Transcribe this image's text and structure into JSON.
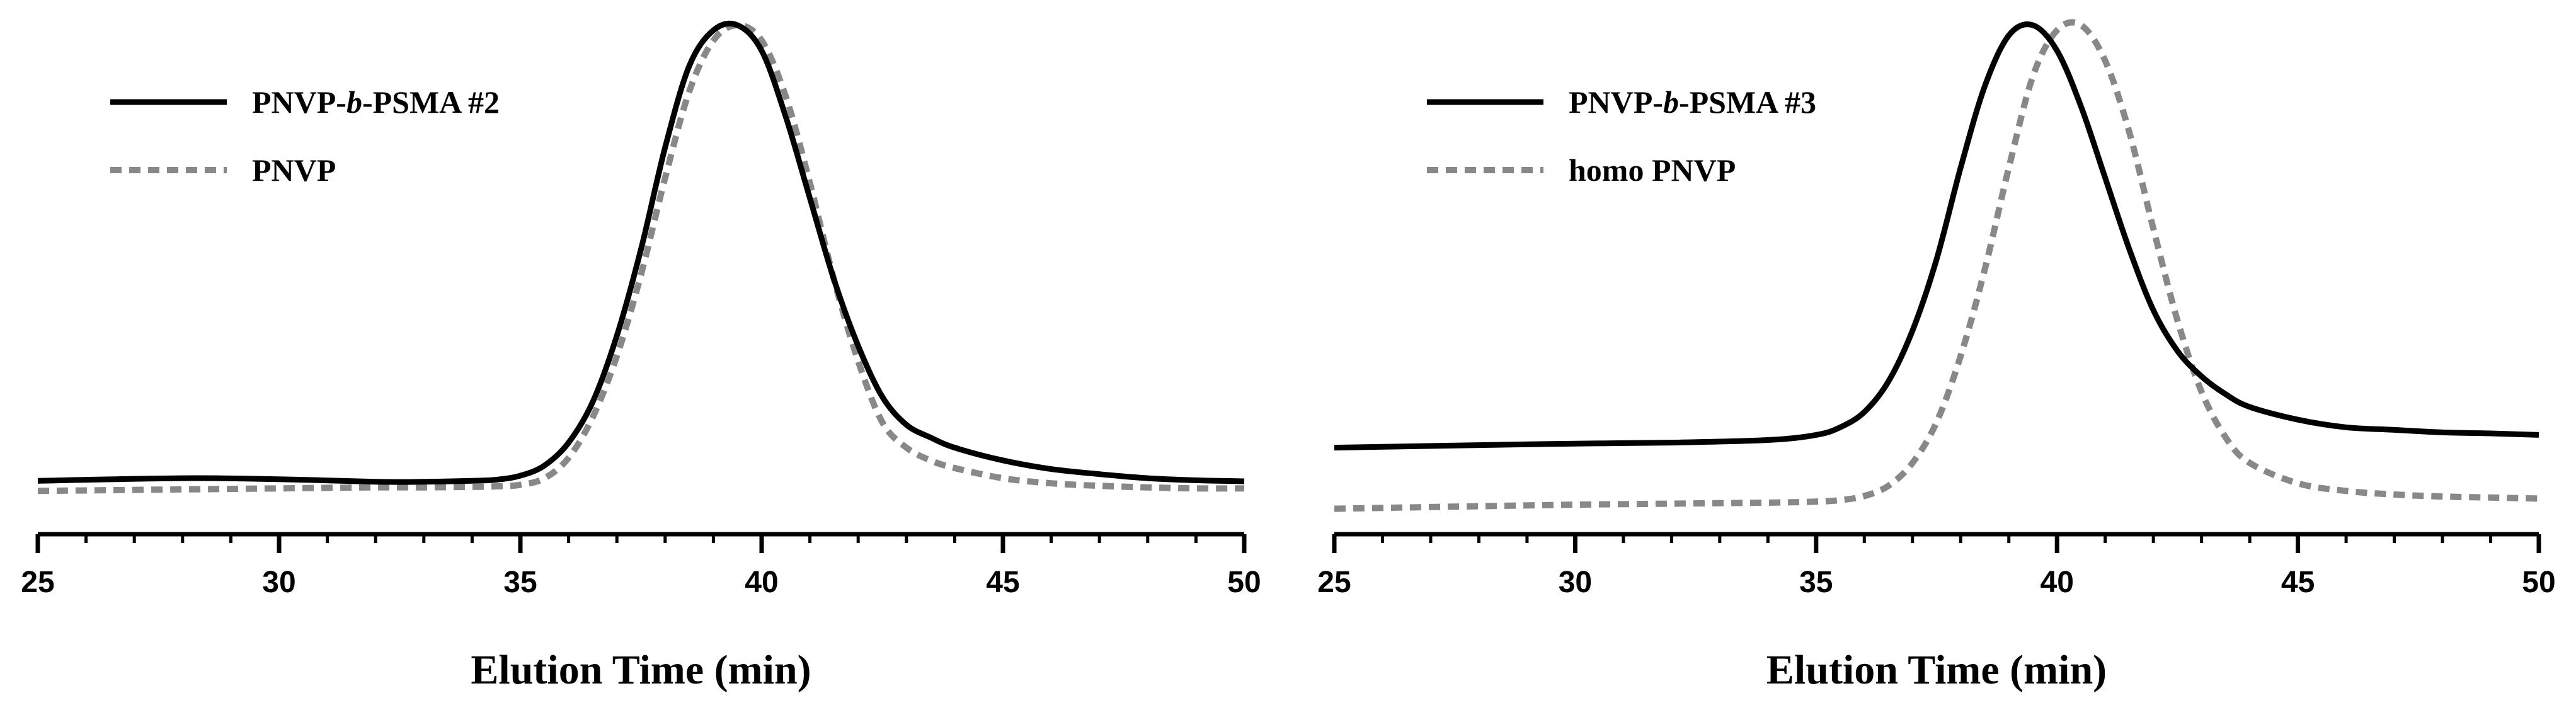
{
  "chart_data": [
    {
      "type": "line",
      "title": "",
      "xlabel": "Elution Time (min)",
      "ylabel": "",
      "xlim": [
        25,
        50
      ],
      "ylim": [
        0,
        1
      ],
      "xticks": [
        25,
        30,
        35,
        40,
        45,
        50
      ],
      "x_minor_step": 1,
      "grid": false,
      "legend_position": "top-left",
      "series": [
        {
          "name": "PNVP-b-PSMA #2",
          "name_parts": [
            "PNVP-",
            "b",
            "-PSMA #2"
          ],
          "style": "solid",
          "color": "#000000",
          "x": [
            25,
            28,
            30,
            32,
            33,
            34,
            34.5,
            35,
            35.5,
            36,
            36.5,
            37,
            37.5,
            38,
            38.5,
            39,
            39.5,
            40,
            40.5,
            41,
            41.5,
            42,
            42.5,
            43,
            43.5,
            44,
            45,
            46,
            47,
            48,
            49,
            50
          ],
          "y": [
            0.105,
            0.11,
            0.108,
            0.103,
            0.103,
            0.105,
            0.107,
            0.115,
            0.135,
            0.18,
            0.26,
            0.39,
            0.56,
            0.76,
            0.92,
            0.99,
            1.0,
            0.95,
            0.82,
            0.66,
            0.5,
            0.37,
            0.27,
            0.215,
            0.19,
            0.17,
            0.145,
            0.128,
            0.118,
            0.11,
            0.106,
            0.104
          ]
        },
        {
          "name": "PNVP",
          "name_parts": [
            "PNVP"
          ],
          "style": "dashed",
          "color": "#888888",
          "x": [
            25,
            28,
            30,
            32,
            33,
            34,
            34.5,
            35,
            35.5,
            36,
            36.5,
            37,
            37.5,
            38,
            38.5,
            39,
            39.5,
            40,
            40.5,
            41,
            41.5,
            42,
            42.5,
            43,
            43.5,
            44,
            45,
            46,
            47,
            48,
            49,
            50
          ],
          "y": [
            0.085,
            0.088,
            0.09,
            0.092,
            0.092,
            0.093,
            0.094,
            0.097,
            0.11,
            0.15,
            0.23,
            0.35,
            0.51,
            0.7,
            0.87,
            0.97,
            1.0,
            0.97,
            0.86,
            0.69,
            0.5,
            0.34,
            0.22,
            0.17,
            0.145,
            0.13,
            0.11,
            0.1,
            0.095,
            0.092,
            0.09,
            0.09
          ]
        }
      ]
    },
    {
      "type": "line",
      "title": "",
      "xlabel": "Elution Time (min)",
      "ylabel": "",
      "xlim": [
        25,
        50
      ],
      "ylim": [
        0,
        1
      ],
      "xticks": [
        25,
        30,
        35,
        40,
        45,
        50
      ],
      "x_minor_step": 1,
      "grid": false,
      "legend_position": "top-left",
      "series": [
        {
          "name": "PNVP-b-PSMA #3",
          "name_parts": [
            "PNVP-",
            "b",
            "-PSMA #3"
          ],
          "style": "solid",
          "color": "#000000",
          "x": [
            25,
            28,
            30,
            32,
            34,
            35,
            35.5,
            36,
            36.5,
            37,
            37.5,
            38,
            38.5,
            39,
            39.5,
            40,
            40.5,
            41,
            41.5,
            42,
            42.5,
            43,
            43.5,
            44,
            45,
            46,
            47,
            48,
            49,
            50
          ],
          "y": [
            0.17,
            0.175,
            0.178,
            0.18,
            0.185,
            0.195,
            0.21,
            0.24,
            0.3,
            0.4,
            0.54,
            0.72,
            0.88,
            0.98,
            1.0,
            0.95,
            0.84,
            0.7,
            0.56,
            0.44,
            0.36,
            0.31,
            0.275,
            0.25,
            0.225,
            0.21,
            0.205,
            0.2,
            0.198,
            0.195
          ]
        },
        {
          "name": "homo PNVP",
          "name_parts": [
            "homo PNVP"
          ],
          "style": "dashed",
          "color": "#888888",
          "x": [
            25,
            28,
            30,
            32,
            34,
            35,
            35.5,
            36,
            36.5,
            37,
            37.5,
            38,
            38.5,
            39,
            39.5,
            40,
            40.5,
            41,
            41.5,
            42,
            42.5,
            43,
            43.5,
            44,
            45,
            46,
            47,
            48,
            49,
            50
          ],
          "y": [
            0.05,
            0.055,
            0.058,
            0.06,
            0.062,
            0.064,
            0.067,
            0.075,
            0.095,
            0.14,
            0.22,
            0.35,
            0.52,
            0.72,
            0.9,
            0.99,
            1.0,
            0.93,
            0.79,
            0.6,
            0.42,
            0.28,
            0.19,
            0.14,
            0.1,
            0.085,
            0.078,
            0.074,
            0.072,
            0.07
          ]
        }
      ]
    }
  ]
}
